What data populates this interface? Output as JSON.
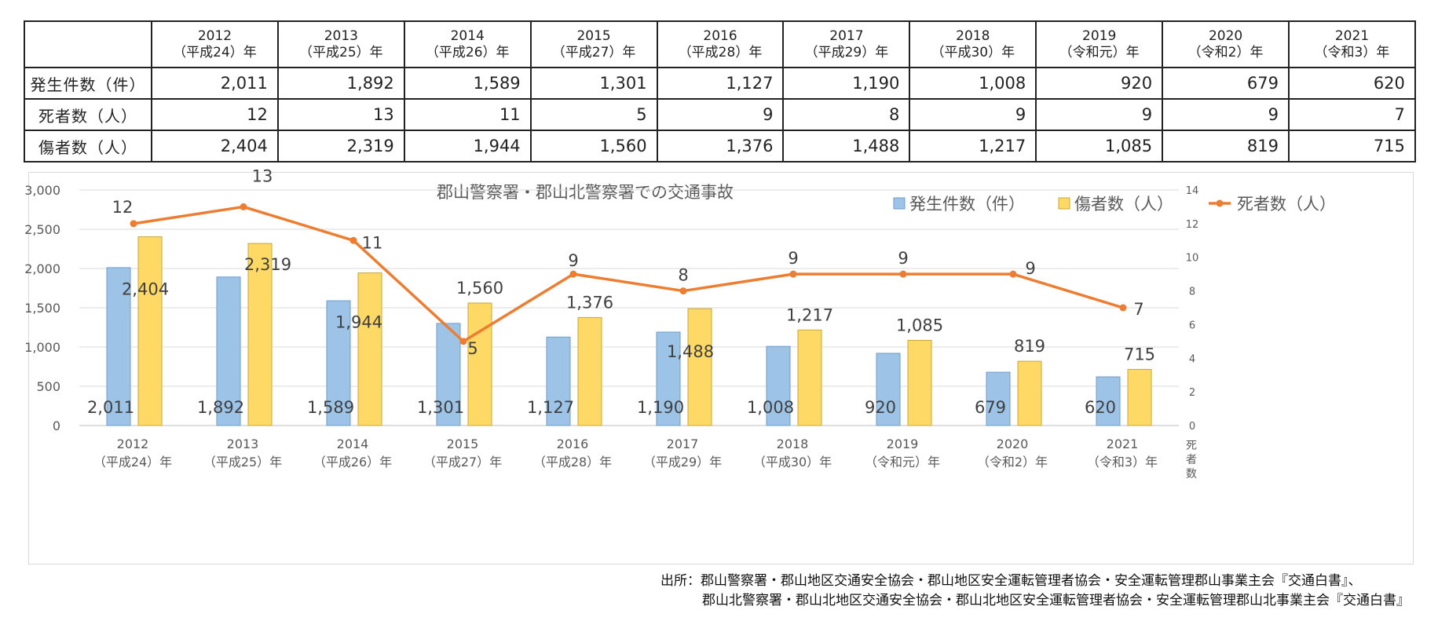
{
  "table": {
    "columns": [
      {
        "year": "2012",
        "era": "（平成24）年"
      },
      {
        "year": "2013",
        "era": "（平成25）年"
      },
      {
        "year": "2014",
        "era": "（平成26）年"
      },
      {
        "year": "2015",
        "era": "（平成27）年"
      },
      {
        "year": "2016",
        "era": "（平成28）年"
      },
      {
        "year": "2017",
        "era": "（平成29）年"
      },
      {
        "year": "2018",
        "era": "（平成30）年"
      },
      {
        "year": "2019",
        "era": "（令和元）年"
      },
      {
        "year": "2020",
        "era": "（令和2）年"
      },
      {
        "year": "2021",
        "era": "（令和3）年"
      }
    ],
    "rows": [
      {
        "label": "発生件数（件）",
        "values": [
          "2,011",
          "1,892",
          "1,589",
          "1,301",
          "1,127",
          "1,190",
          "1,008",
          "920",
          "679",
          "620"
        ]
      },
      {
        "label": "死者数（人）",
        "values": [
          "12",
          "13",
          "11",
          "5",
          "9",
          "8",
          "9",
          "9",
          "9",
          "7"
        ]
      },
      {
        "label": "傷者数（人）",
        "values": [
          "2,404",
          "2,319",
          "1,944",
          "1,560",
          "1,376",
          "1,488",
          "1,217",
          "1,085",
          "819",
          "715"
        ]
      }
    ]
  },
  "chart_data": {
    "type": "bar+line",
    "title": "郡山警察署・郡山北警察署での交通事故",
    "categories": [
      [
        "2012",
        "（平成24）年"
      ],
      [
        "2013",
        "（平成25）年"
      ],
      [
        "2014",
        "（平成26）年"
      ],
      [
        "2015",
        "（平成27）年"
      ],
      [
        "2016",
        "（平成28）年"
      ],
      [
        "2017",
        "（平成29）年"
      ],
      [
        "2018",
        "（平成30）年"
      ],
      [
        "2019",
        "（令和元）年"
      ],
      [
        "2020",
        "（令和2）年"
      ],
      [
        "2021",
        "（令和3）年"
      ]
    ],
    "series": [
      {
        "name": "発生件数（件）",
        "kind": "bar",
        "axis": "left",
        "color": "#9dc3e6",
        "values": [
          2011,
          1892,
          1589,
          1301,
          1127,
          1190,
          1008,
          920,
          679,
          620
        ],
        "labels": [
          "2,011",
          "1,892",
          "1,589",
          "1,301",
          "1,127",
          "1,190",
          "1,008",
          "920",
          "679",
          "620"
        ]
      },
      {
        "name": "傷者数（人）",
        "kind": "bar",
        "axis": "left",
        "color": "#ffd966",
        "values": [
          2404,
          2319,
          1944,
          1560,
          1376,
          1488,
          1217,
          1085,
          819,
          715
        ],
        "labels": [
          "2,404",
          "2,319",
          "1,944",
          "1,560",
          "1,376",
          "1,488",
          "1,217",
          "1,085",
          "819",
          "715"
        ]
      },
      {
        "name": "死者数（人）",
        "kind": "line",
        "axis": "right",
        "color": "#ed7d31",
        "values": [
          12,
          13,
          11,
          5,
          9,
          8,
          9,
          9,
          9,
          7
        ],
        "labels": [
          "12",
          "13",
          "11",
          "5",
          "9",
          "8",
          "9",
          "9",
          "9",
          "7"
        ]
      }
    ],
    "y_left": {
      "min": 0,
      "max": 3000,
      "ticks": [
        0,
        500,
        1000,
        1500,
        2000,
        2500,
        3000
      ],
      "tick_labels": [
        "0",
        "500",
        "1,000",
        "1,500",
        "2,000",
        "2,500",
        "3,000"
      ]
    },
    "y_right": {
      "min": 0,
      "max": 14,
      "ticks": [
        0,
        2,
        4,
        6,
        8,
        10,
        12,
        14
      ],
      "label": "死者数"
    },
    "legend_position": "top-right",
    "grid": true
  },
  "source": {
    "line1": "出所：郡山警察署・郡山地区交通安全協会・郡山地区安全運転管理者協会・安全運転管理郡山事業主会『交通白書』、",
    "line2": "郡山北警察署・郡山北地区交通安全協会・郡山北地区安全運転管理者協会・安全運転管理郡山北事業主会『交通白書』"
  }
}
